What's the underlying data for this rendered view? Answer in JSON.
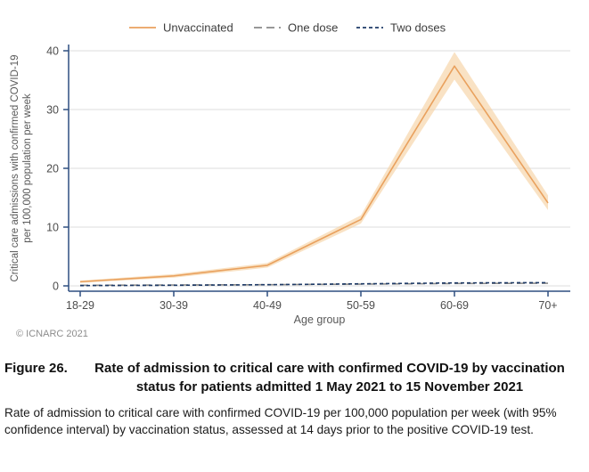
{
  "page": {
    "copyright": "© ICNARC 2021",
    "figure_label": "Figure 26.",
    "figure_title": "Rate of admission to critical care with confirmed COVID-19 by vaccina­tion status for patients admitted 1 May 2021 to 15 November 2021",
    "description": "Rate of admission to critical care with confirmed COVID-19 per 100,000 population per week (with 95% confidence interval) by vaccination status, assessed at 14 days prior to the positive COVID-19 test."
  },
  "chart_data": {
    "type": "line",
    "title": "",
    "categories": [
      "18-29",
      "30-39",
      "40-49",
      "50-59",
      "60-69",
      "70+"
    ],
    "xlabel": "Age group",
    "ylabel_line1": "Critical care admissions with confirmed COVID-19",
    "ylabel_line2": "per 100,000 population per week",
    "ylim": [
      0,
      40
    ],
    "yticks": [
      0,
      10,
      20,
      30,
      40
    ],
    "grid": "horizontal",
    "legend_position": "top-center",
    "series": [
      {
        "name": "Unvaccinated",
        "line_style": "solid",
        "color": "#E9A15E",
        "band_color": "#F6D2A4",
        "values": [
          0.7,
          1.7,
          3.5,
          11.3,
          37.4,
          14.1
        ],
        "ci_lower": [
          0.5,
          1.4,
          3.1,
          10.6,
          35.1,
          12.9
        ],
        "ci_upper": [
          0.9,
          2.0,
          3.9,
          12.0,
          39.8,
          15.4
        ]
      },
      {
        "name": "One dose",
        "line_style": "long-dash",
        "color": "#8A8A8A",
        "values": [
          0.1,
          0.15,
          0.2,
          0.3,
          0.4,
          0.45
        ]
      },
      {
        "name": "Two doses",
        "line_style": "short-dash",
        "color": "#1F3B67",
        "values": [
          0.05,
          0.1,
          0.2,
          0.35,
          0.5,
          0.55
        ]
      }
    ]
  },
  "colors": {
    "axis": "#2F4F80",
    "grid": "#E3E3E3",
    "tick_label": "#4D4D4D",
    "axis_title": "#595959",
    "legend_text": "#3D3D3D",
    "copyright": "#8C8C8C"
  }
}
